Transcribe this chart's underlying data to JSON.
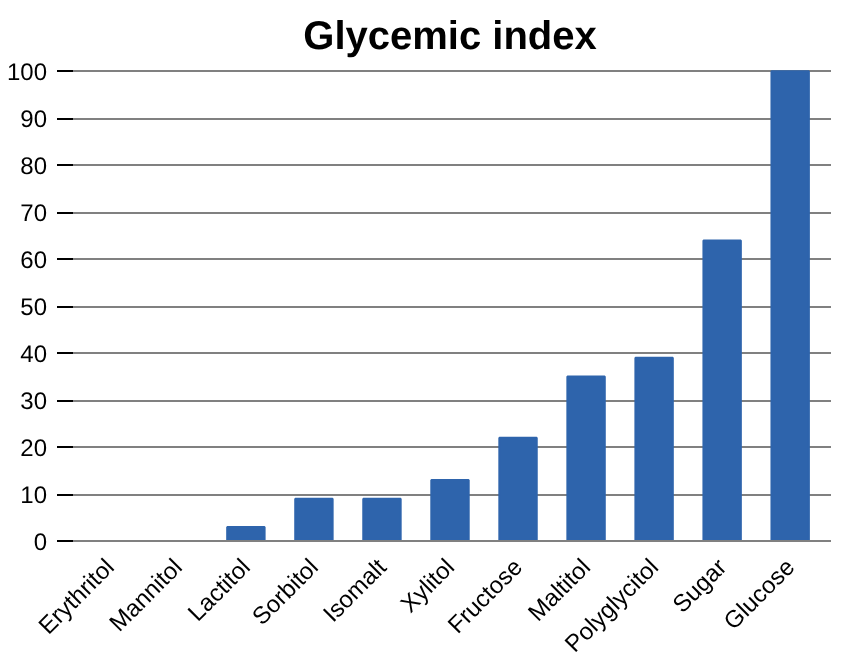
{
  "chart_data": {
    "type": "bar",
    "title": "Glycemic index",
    "categories": [
      "Erythritol",
      "Mannitol",
      "Lactitol",
      "Sorbitol",
      "Isomalt",
      "Xylitol",
      "Fructose",
      "Maltitol",
      "Polyglycitol",
      "Sugar",
      "Glucose"
    ],
    "values": [
      0,
      0,
      3,
      9,
      9,
      13,
      22,
      35,
      39,
      64,
      100
    ],
    "color": "#2e64ac",
    "ylim": [
      0,
      100
    ],
    "yticks": [
      0,
      10,
      20,
      30,
      40,
      50,
      60,
      70,
      80,
      90,
      100
    ],
    "grid": "y"
  }
}
